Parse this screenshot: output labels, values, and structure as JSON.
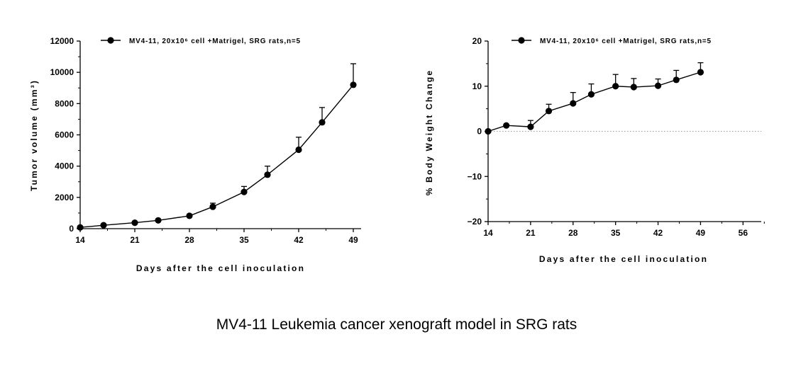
{
  "caption": "MV4-11 Leukemia cancer xenograft model in SRG rats",
  "chart_data": [
    {
      "type": "line",
      "xlabel": "Days after the cell inoculation",
      "ylabel": "Tumor volume (mm³)",
      "xlim": [
        14,
        50
      ],
      "ylim": [
        0,
        12000
      ],
      "xticks": [
        14,
        21,
        28,
        35,
        42,
        49
      ],
      "yticks": [
        0,
        2000,
        4000,
        6000,
        8000,
        10000,
        12000
      ],
      "legend_position": "top",
      "series": [
        {
          "name": "MV4-11, 20x10⁶ cell +Matrigel, SRG rats,n=5",
          "x": [
            14,
            17,
            21,
            24,
            28,
            31,
            35,
            38,
            42,
            45,
            49
          ],
          "y": [
            80,
            220,
            380,
            530,
            820,
            1400,
            2350,
            3450,
            5050,
            6800,
            9200
          ],
          "error": [
            0,
            0,
            0,
            0,
            0,
            230,
            350,
            550,
            800,
            950,
            1350
          ]
        }
      ]
    },
    {
      "type": "line",
      "xlabel": "Days after the cell inoculation",
      "ylabel": "% Body Weight Change",
      "xlim": [
        14,
        59
      ],
      "ylim": [
        -20,
        20
      ],
      "xticks": [
        14,
        21,
        28,
        35,
        42,
        49,
        56
      ],
      "yticks": [
        -20,
        -10,
        0,
        10,
        20
      ],
      "reference_line": 0,
      "legend_position": "top",
      "series": [
        {
          "name": "MV4-11, 20x10⁶ cell +Matrigel, SRG rats,n=5",
          "x": [
            14,
            17,
            21,
            24,
            28,
            31,
            35,
            38,
            42,
            45,
            49
          ],
          "y": [
            0,
            1.3,
            1.0,
            4.5,
            6.2,
            8.2,
            10.0,
            9.8,
            10.1,
            11.4,
            13.1
          ],
          "error": [
            0,
            0,
            1.4,
            1.5,
            2.4,
            2.3,
            2.6,
            1.9,
            1.5,
            2.1,
            2.1
          ]
        }
      ]
    }
  ]
}
